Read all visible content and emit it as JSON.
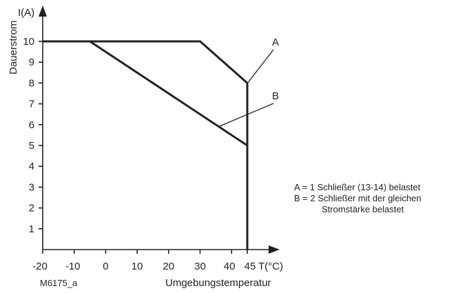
{
  "chart_data": {
    "type": "line",
    "ylabel_unit": "I(A)",
    "ylabel": "Dauerstrom",
    "xlabel_unit": "T(°C)",
    "xlabel": "Umgebungstemperatur",
    "figure_id": "M6175_a",
    "xlim": [
      -20,
      45
    ],
    "ylim": [
      0,
      10
    ],
    "x_ticks": [
      "-20",
      "-10",
      "0",
      "10",
      "20",
      "30",
      "40",
      "45"
    ],
    "y_ticks": [
      "1",
      "2",
      "3",
      "4",
      "5",
      "6",
      "7",
      "8",
      "9",
      "10"
    ],
    "series": [
      {
        "name": "A",
        "points": [
          [
            -20,
            10
          ],
          [
            30,
            10
          ],
          [
            45,
            8
          ],
          [
            45,
            0
          ]
        ]
      },
      {
        "name": "B",
        "points": [
          [
            -20,
            10
          ],
          [
            -5,
            10
          ],
          [
            45,
            5
          ],
          [
            45,
            0
          ]
        ]
      }
    ],
    "legend": [
      {
        "key": "A",
        "lines": [
          "A = 1 Schließer (13-14) belastet"
        ]
      },
      {
        "key": "B",
        "lines": [
          "B = 2 Schließer mit der gleichen",
          "Stromstärke belastet"
        ]
      }
    ]
  }
}
